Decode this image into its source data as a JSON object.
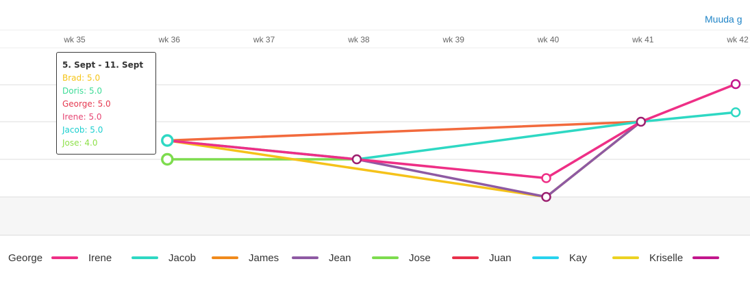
{
  "header": {
    "edit_link": "Muuda g"
  },
  "tooltip": {
    "title": "5. Sept - 11. Sept",
    "rows": [
      {
        "text": "Brad: 5.0",
        "color": "#f5c518"
      },
      {
        "text": "Doris: 5.0",
        "color": "#3ddc97"
      },
      {
        "text": "George: 5.0",
        "color": "#e53950"
      },
      {
        "text": "Irene: 5.0",
        "color": "#e64573"
      },
      {
        "text": "Jacob: 5.0",
        "color": "#1ccfcf"
      },
      {
        "text": "Jose: 4.0",
        "color": "#8ee04a"
      }
    ]
  },
  "chart_data": {
    "type": "line",
    "x": [
      "wk 35",
      "wk 36",
      "wk 37",
      "wk 38",
      "wk 39",
      "wk 40",
      "wk 41",
      "wk 42"
    ],
    "grid": true,
    "legend_position": "bottom",
    "series": [
      {
        "name": "George",
        "color": "#f26a3d",
        "values": [
          null,
          5.0,
          null,
          null,
          null,
          null,
          6.0,
          null
        ]
      },
      {
        "name": "Jose",
        "color": "#7ddc4e",
        "values": [
          null,
          4.0,
          null,
          4.0,
          null,
          null,
          null,
          null
        ]
      },
      {
        "name": "Jacob",
        "color": "#2ed8c3",
        "values": [
          null,
          5.0,
          null,
          4.0,
          null,
          null,
          6.0,
          6.5
        ]
      },
      {
        "name": "Kriselle",
        "color": "#f5c21a",
        "values": [
          null,
          5.0,
          null,
          null,
          null,
          2.0,
          6.0,
          null
        ]
      },
      {
        "name": "Jean",
        "color": "#8e5aa3",
        "values": [
          null,
          null,
          null,
          4.0,
          null,
          2.0,
          6.0,
          null
        ]
      },
      {
        "name": "Irene",
        "color": "#ee2f86",
        "values": [
          null,
          5.0,
          null,
          4.0,
          null,
          3.0,
          6.0,
          8.0
        ]
      }
    ],
    "legend": [
      {
        "name": "George",
        "color": "#f26a3d"
      },
      {
        "name": "Irene",
        "color": "#ee2f86"
      },
      {
        "name": "Jacob",
        "color": "#2ed8c3"
      },
      {
        "name": "James",
        "color": "#f08a1c"
      },
      {
        "name": "Jean",
        "color": "#8e5aa3"
      },
      {
        "name": "Jose",
        "color": "#7ddc4e"
      },
      {
        "name": "Juan",
        "color": "#e8304a"
      },
      {
        "name": "Kay",
        "color": "#27d3ee"
      },
      {
        "name": "Kriselle",
        "color": "#ecd222"
      },
      {
        "name": "",
        "color": "#c2168c"
      }
    ],
    "markers": [
      {
        "x": "wk 36",
        "y": 5.0,
        "color": "#2ed8c3"
      },
      {
        "x": "wk 36",
        "y": 4.0,
        "color": "#7ddc4e"
      },
      {
        "x": "wk 38",
        "y": 4.0,
        "color": "#9b1f6f"
      },
      {
        "x": "wk 40",
        "y": 3.0,
        "color": "#ee2f86"
      },
      {
        "x": "wk 40",
        "y": 2.0,
        "color": "#9b1f6f"
      },
      {
        "x": "wk 41",
        "y": 6.0,
        "color": "#9b1f6f"
      },
      {
        "x": "wk 42",
        "y": 8.0,
        "color": "#c2168c"
      },
      {
        "x": "wk 42",
        "y": 6.5,
        "color": "#2ed8c3"
      }
    ]
  }
}
